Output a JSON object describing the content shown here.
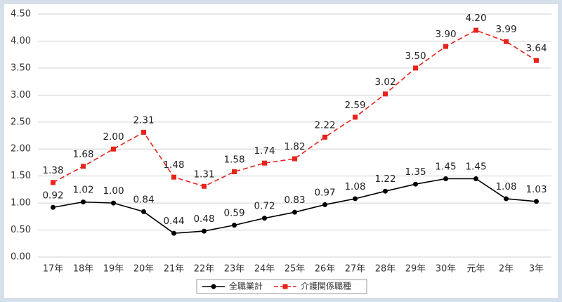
{
  "chart_data": {
    "type": "line",
    "categories": [
      "17年",
      "18年",
      "19年",
      "20年",
      "21年",
      "22年",
      "23年",
      "24年",
      "25年",
      "26年",
      "27年",
      "28年",
      "29年",
      "30年",
      "元年",
      "2年",
      "3年"
    ],
    "series": [
      {
        "name": "全職業計",
        "color": "#000000",
        "dash": false,
        "marker": "circle",
        "values": [
          0.92,
          1.02,
          1.0,
          0.84,
          0.44,
          0.48,
          0.59,
          0.72,
          0.83,
          0.97,
          1.08,
          1.22,
          1.35,
          1.45,
          1.45,
          1.08,
          1.03
        ],
        "value_labels": [
          "0.92",
          "1.02",
          "1.00",
          "0.84",
          "0.44",
          "0.48",
          "0.59",
          "0.72",
          "0.83",
          "0.97",
          "1.08",
          "1.22",
          "1.35",
          "1.45",
          "1.45",
          "1.08",
          "1.03"
        ]
      },
      {
        "name": "介護関係職種",
        "color": "#e8231b",
        "dash": true,
        "marker": "square",
        "values": [
          1.38,
          1.68,
          2.0,
          2.31,
          1.48,
          1.31,
          1.58,
          1.74,
          1.82,
          2.22,
          2.59,
          3.02,
          3.5,
          3.9,
          4.2,
          3.99,
          3.64
        ],
        "value_labels": [
          "1.38",
          "1.68",
          "2.00",
          "2.31",
          "1.48",
          "1.31",
          "1.58",
          "1.74",
          "1.82",
          "2.22",
          "2.59",
          "3.02",
          "3.50",
          "3.90",
          "4.20",
          "3.99",
          "3.64"
        ]
      }
    ],
    "ylim": [
      0,
      4.5
    ],
    "yticks": [
      {
        "value": 0,
        "label": "0.00"
      },
      {
        "value": 0.5,
        "label": "0.50"
      },
      {
        "value": 1,
        "label": "1.00"
      },
      {
        "value": 1.5,
        "label": "1.50"
      },
      {
        "value": 2,
        "label": "2.00"
      },
      {
        "value": 2.5,
        "label": "2.50"
      },
      {
        "value": 3,
        "label": "3.00"
      },
      {
        "value": 3.5,
        "label": "3.50"
      },
      {
        "value": 4,
        "label": "4.00"
      },
      {
        "value": 4.5,
        "label": "4.50"
      }
    ],
    "grid": true,
    "legend": "bottom"
  }
}
